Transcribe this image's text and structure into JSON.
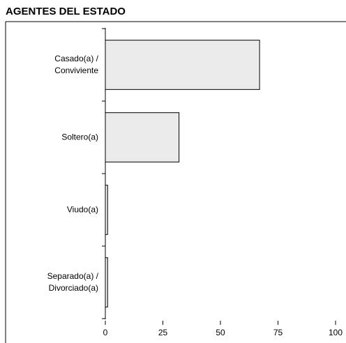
{
  "chart_data": {
    "type": "bar",
    "orientation": "horizontal",
    "title": "AGENTES DEL ESTADO",
    "categories": [
      "Casado(a) / Conviviente",
      "Soltero(a)",
      "Viudo(a)",
      "Separado(a) / Divorciado(a)"
    ],
    "values": [
      67,
      32,
      1,
      1
    ],
    "color": "#ebebeb",
    "xlim": [
      0,
      100
    ],
    "xticks": [
      0,
      25,
      50,
      75,
      100
    ],
    "grid": false
  }
}
